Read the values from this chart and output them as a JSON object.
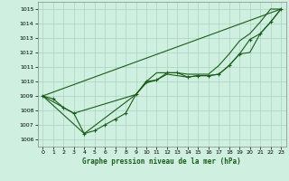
{
  "title": "Graphe pression niveau de la mer (hPa)",
  "background_color": "#cff0e0",
  "grid_color": "#aad4be",
  "line_color": "#1a5c1a",
  "xlim": [
    -0.5,
    23.5
  ],
  "ylim": [
    1005.5,
    1015.5
  ],
  "yticks": [
    1006,
    1007,
    1008,
    1009,
    1010,
    1011,
    1012,
    1013,
    1014,
    1015
  ],
  "xticks": [
    0,
    1,
    2,
    3,
    4,
    5,
    6,
    7,
    8,
    9,
    10,
    11,
    12,
    13,
    14,
    15,
    16,
    17,
    18,
    19,
    20,
    21,
    22,
    23
  ],
  "line_main": {
    "x": [
      0,
      1,
      2,
      3,
      4,
      5,
      6,
      7,
      8,
      9,
      10,
      11,
      12,
      13,
      14,
      15,
      16,
      17,
      18,
      19,
      20,
      21,
      22,
      23
    ],
    "y": [
      1009.0,
      1008.8,
      1008.2,
      1007.8,
      1006.4,
      1006.6,
      1007.0,
      1007.4,
      1007.8,
      1009.1,
      1010.0,
      1010.1,
      1010.6,
      1010.6,
      1010.3,
      1010.4,
      1010.4,
      1010.5,
      1011.1,
      1011.9,
      1012.9,
      1013.3,
      1014.1,
      1015.0
    ]
  },
  "line_envelope1": {
    "x": [
      0,
      3,
      9,
      10,
      11,
      12,
      13,
      14,
      15,
      16,
      17,
      18,
      19,
      20,
      21,
      22,
      23
    ],
    "y": [
      1009.0,
      1007.8,
      1009.1,
      1010.0,
      1010.6,
      1010.6,
      1010.6,
      1010.5,
      1010.5,
      1010.5,
      1011.1,
      1011.9,
      1012.8,
      1013.3,
      1014.1,
      1015.0,
      1015.0
    ]
  },
  "line_envelope2": {
    "x": [
      0,
      23
    ],
    "y": [
      1009.0,
      1015.0
    ]
  },
  "line_envelope3": {
    "x": [
      0,
      4,
      9,
      10,
      11,
      12,
      13,
      14,
      15,
      16,
      17,
      18,
      19,
      20,
      21,
      22,
      23
    ],
    "y": [
      1009.0,
      1006.4,
      1009.1,
      1009.9,
      1010.1,
      1010.5,
      1010.4,
      1010.3,
      1010.4,
      1010.4,
      1010.5,
      1011.1,
      1011.9,
      1012.0,
      1013.3,
      1014.1,
      1015.0
    ]
  }
}
